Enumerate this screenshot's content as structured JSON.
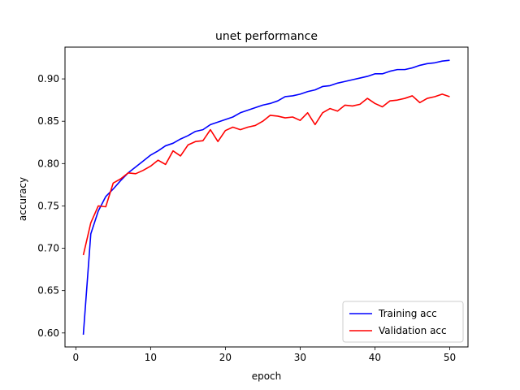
{
  "chart_data": {
    "type": "line",
    "title": "unet performance",
    "xlabel": "epoch",
    "ylabel": "accuracy",
    "xlim": [
      -1.45,
      52.45
    ],
    "ylim": [
      0.5835,
      0.9375
    ],
    "xticks": [
      0,
      10,
      20,
      30,
      40,
      50
    ],
    "xtick_labels": [
      "0",
      "10",
      "20",
      "30",
      "40",
      "50"
    ],
    "yticks": [
      0.6,
      0.65,
      0.7,
      0.75,
      0.8,
      0.85,
      0.9
    ],
    "ytick_labels": [
      "0.60",
      "0.65",
      "0.70",
      "0.75",
      "0.80",
      "0.85",
      "0.90"
    ],
    "grid": false,
    "legend_position": "lower-right",
    "x": [
      1,
      2,
      3,
      4,
      5,
      6,
      7,
      8,
      9,
      10,
      11,
      12,
      13,
      14,
      15,
      16,
      17,
      18,
      19,
      20,
      21,
      22,
      23,
      24,
      25,
      26,
      27,
      28,
      29,
      30,
      31,
      32,
      33,
      34,
      35,
      36,
      37,
      38,
      39,
      40,
      41,
      42,
      43,
      44,
      45,
      46,
      47,
      48,
      49,
      50
    ],
    "series": [
      {
        "name": "Training acc",
        "color": "#0000ff",
        "values": [
          0.598,
          0.717,
          0.744,
          0.761,
          0.77,
          0.78,
          0.789,
          0.796,
          0.803,
          0.81,
          0.815,
          0.821,
          0.824,
          0.829,
          0.833,
          0.838,
          0.84,
          0.846,
          0.849,
          0.852,
          0.855,
          0.86,
          0.863,
          0.866,
          0.869,
          0.871,
          0.874,
          0.879,
          0.88,
          0.882,
          0.885,
          0.887,
          0.891,
          0.892,
          0.895,
          0.897,
          0.899,
          0.901,
          0.903,
          0.906,
          0.906,
          0.909,
          0.911,
          0.911,
          0.913,
          0.916,
          0.918,
          0.919,
          0.921,
          0.922
        ]
      },
      {
        "name": "Validation acc",
        "color": "#ff0000",
        "values": [
          0.692,
          0.73,
          0.75,
          0.749,
          0.777,
          0.782,
          0.789,
          0.788,
          0.792,
          0.797,
          0.804,
          0.799,
          0.815,
          0.809,
          0.822,
          0.826,
          0.827,
          0.84,
          0.826,
          0.839,
          0.843,
          0.84,
          0.843,
          0.845,
          0.85,
          0.857,
          0.856,
          0.854,
          0.855,
          0.851,
          0.86,
          0.846,
          0.86,
          0.865,
          0.862,
          0.869,
          0.868,
          0.87,
          0.877,
          0.871,
          0.867,
          0.874,
          0.875,
          0.877,
          0.88,
          0.872,
          0.877,
          0.879,
          0.882,
          0.879
        ]
      }
    ]
  }
}
